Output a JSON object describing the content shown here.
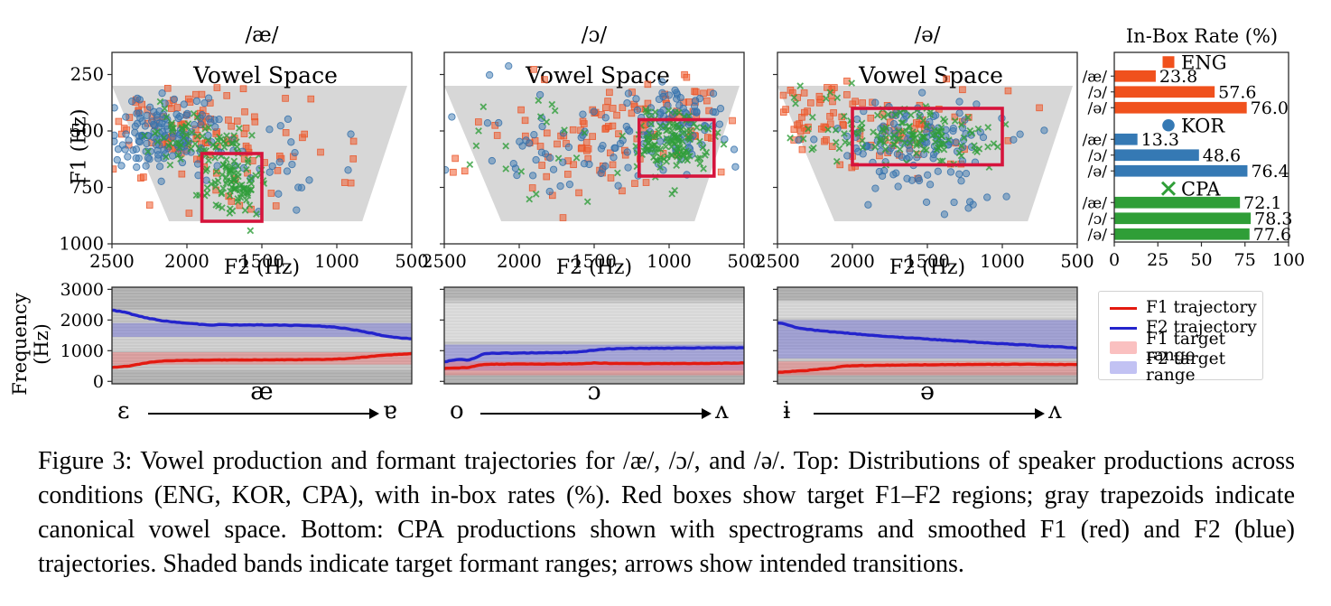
{
  "colors": {
    "eng": "#f0511d",
    "kor": "#3579b4",
    "cpa": "#2f9e37",
    "eng_scatter_fill": "rgba(240,92,48,0.55)",
    "eng_scatter_edge": "rgba(233,84,40,0.9)",
    "kor_scatter_fill": "rgba(62,122,177,0.5)",
    "kor_scatter_edge": "rgba(52,112,170,0.85)",
    "cpa_scatter_stroke": "rgba(47,158,57,0.8)",
    "target_box": "#d6143c",
    "vowel_space": "#d7d7d7",
    "f1_line": "#e31a10",
    "f2_line": "#2424cc",
    "f1_band": "rgba(244,115,115,0.45)",
    "f2_band": "rgba(110,110,226,0.42)",
    "spectrogram_base": "#bdbdbd",
    "frame": "#2b2b2b"
  },
  "chart_data": {
    "vowel_scatter": {
      "type": "scatter",
      "x_axis": {
        "label": "F2 (Hz)",
        "ticks": [
          2500,
          2000,
          1500,
          1000,
          500
        ],
        "range": [
          2500,
          500
        ],
        "reversed": true
      },
      "y_axis": {
        "label": "F1 (Hz)",
        "ticks": [
          250,
          500,
          750,
          1000
        ],
        "range": [
          152,
          1000
        ],
        "reversed": true
      },
      "annotation": "Vowel Space",
      "vowel_space_polygon_f2_f1": [
        [
          2500,
          300
        ],
        [
          530,
          300
        ],
        [
          830,
          900
        ],
        [
          2120,
          900
        ]
      ],
      "series": [
        {
          "name": "ENG",
          "marker": "square"
        },
        {
          "name": "KOR",
          "marker": "circle"
        },
        {
          "name": "CPA",
          "marker": "x"
        }
      ],
      "panels": [
        {
          "title": "/æ/",
          "target_box": {
            "f2": [
              1900,
              1500
            ],
            "f1": [
              600,
              900
            ]
          },
          "clusters": [
            {
              "s": "ENG",
              "n": 95,
              "x": 2060,
              "y": 500,
              "sx": 270,
              "sy": 95
            },
            {
              "s": "ENG",
              "n": 22,
              "x": 1650,
              "y": 720,
              "sx": 260,
              "sy": 120
            },
            {
              "s": "ENG",
              "n": 10,
              "x": 1280,
              "y": 560,
              "sx": 140,
              "sy": 90
            },
            {
              "s": "KOR",
              "n": 135,
              "x": 2160,
              "y": 505,
              "sx": 220,
              "sy": 75
            },
            {
              "s": "KOR",
              "n": 20,
              "x": 1500,
              "y": 620,
              "sx": 260,
              "sy": 120
            },
            {
              "s": "KOR",
              "n": 7,
              "x": 1260,
              "y": 760,
              "sx": 90,
              "sy": 70
            },
            {
              "s": "CPA",
              "n": 65,
              "x": 1950,
              "y": 535,
              "sx": 170,
              "sy": 55
            },
            {
              "s": "CPA",
              "n": 95,
              "x": 1700,
              "y": 735,
              "sx": 105,
              "sy": 80
            }
          ]
        },
        {
          "title": "/ɔ/",
          "target_box": {
            "f2": [
              1200,
              700
            ],
            "f1": [
              450,
              700
            ]
          },
          "clusters": [
            {
              "s": "ENG",
              "n": 95,
              "x": 1450,
              "y": 520,
              "sx": 380,
              "sy": 120
            },
            {
              "s": "ENG",
              "n": 18,
              "x": 900,
              "y": 360,
              "sx": 160,
              "sy": 60
            },
            {
              "s": "KOR",
              "n": 85,
              "x": 950,
              "y": 470,
              "sx": 150,
              "sy": 80
            },
            {
              "s": "KOR",
              "n": 55,
              "x": 1650,
              "y": 560,
              "sx": 380,
              "sy": 130
            },
            {
              "s": "CPA",
              "n": 125,
              "x": 1000,
              "y": 545,
              "sx": 115,
              "sy": 70
            },
            {
              "s": "CPA",
              "n": 22,
              "x": 1800,
              "y": 600,
              "sx": 330,
              "sy": 140
            }
          ]
        },
        {
          "title": "/ə/",
          "target_box": {
            "f2": [
              2000,
              1000
            ],
            "f1": [
              400,
              650
            ]
          },
          "clusters": [
            {
              "s": "ENG",
              "n": 70,
              "x": 1750,
              "y": 495,
              "sx": 340,
              "sy": 105
            },
            {
              "s": "ENG",
              "n": 30,
              "x": 2260,
              "y": 395,
              "sx": 140,
              "sy": 85
            },
            {
              "s": "KOR",
              "n": 105,
              "x": 1560,
              "y": 530,
              "sx": 270,
              "sy": 85
            },
            {
              "s": "KOR",
              "n": 25,
              "x": 1500,
              "y": 750,
              "sx": 240,
              "sy": 85
            },
            {
              "s": "CPA",
              "n": 125,
              "x": 1560,
              "y": 520,
              "sx": 240,
              "sy": 65
            },
            {
              "s": "CPA",
              "n": 14,
              "x": 2200,
              "y": 460,
              "sx": 170,
              "sy": 95
            }
          ]
        }
      ]
    },
    "in_box_rate": {
      "type": "bar",
      "title": "In-Box Rate (%)",
      "orientation": "horizontal",
      "xlim": [
        0,
        100
      ],
      "x_ticks": [
        0,
        25,
        50,
        75,
        100
      ],
      "categories": [
        "/æ/",
        "/ɔ/",
        "/ə/"
      ],
      "series": [
        {
          "name": "ENG",
          "marker": "square",
          "values": [
            23.8,
            57.6,
            76.0
          ],
          "labels": [
            "23.8",
            "57.6",
            "76.0"
          ]
        },
        {
          "name": "KOR",
          "marker": "circle",
          "values": [
            13.3,
            48.6,
            76.4
          ],
          "labels": [
            "13.3",
            "48.6",
            "76.4"
          ]
        },
        {
          "name": "CPA",
          "marker": "x",
          "values": [
            72.1,
            78.3,
            77.6
          ],
          "labels": [
            "72.1",
            "78.3",
            "77.6"
          ]
        }
      ]
    },
    "formant_trajectories": {
      "type": "line",
      "y_axis": {
        "label": "Frequency (Hz)",
        "ticks": [
          0,
          1000,
          2000,
          3000
        ],
        "range": [
          0,
          3000
        ]
      },
      "panels": [
        {
          "vowel": "æ",
          "from": "ε",
          "to": "ɐ",
          "f1_target_range": [
            550,
            950
          ],
          "f2_target_range": [
            1450,
            1900
          ],
          "light_zones": [
            [
              1000,
              1450,
              0.18
            ]
          ],
          "dark_zones": [
            [
              2350,
              3070,
              0.1
            ],
            [
              -80,
              350,
              0.1
            ]
          ],
          "f2_trajectory": [
            [
              0,
              2320
            ],
            [
              0.04,
              2260
            ],
            [
              0.08,
              2150
            ],
            [
              0.12,
              2060
            ],
            [
              0.16,
              1990
            ],
            [
              0.2,
              1940
            ],
            [
              0.25,
              1900
            ],
            [
              0.3,
              1855
            ],
            [
              0.33,
              1830
            ],
            [
              0.36,
              1862
            ],
            [
              0.4,
              1840
            ],
            [
              0.45,
              1846
            ],
            [
              0.5,
              1840
            ],
            [
              0.55,
              1836
            ],
            [
              0.6,
              1830
            ],
            [
              0.65,
              1820
            ],
            [
              0.7,
              1800
            ],
            [
              0.75,
              1760
            ],
            [
              0.78,
              1720
            ],
            [
              0.82,
              1660
            ],
            [
              0.86,
              1580
            ],
            [
              0.9,
              1500
            ],
            [
              0.93,
              1450
            ],
            [
              0.96,
              1410
            ],
            [
              1,
              1390
            ]
          ],
          "f1_trajectory": [
            [
              0,
              455
            ],
            [
              0.05,
              490
            ],
            [
              0.09,
              560
            ],
            [
              0.13,
              630
            ],
            [
              0.17,
              665
            ],
            [
              0.22,
              680
            ],
            [
              0.3,
              690
            ],
            [
              0.4,
              700
            ],
            [
              0.5,
              700
            ],
            [
              0.6,
              705
            ],
            [
              0.7,
              715
            ],
            [
              0.78,
              740
            ],
            [
              0.84,
              790
            ],
            [
              0.9,
              845
            ],
            [
              0.95,
              880
            ],
            [
              1,
              905
            ]
          ]
        },
        {
          "vowel": "ɔ",
          "from": "o",
          "to": "ʌ",
          "f1_target_range": [
            200,
            650
          ],
          "f2_target_range": [
            350,
            1200
          ],
          "light_zones": [
            [
              1300,
              2550,
              0.38
            ],
            [
              300,
              1150,
              0.15
            ]
          ],
          "dark_zones": [
            [
              2700,
              3070,
              0.1
            ],
            [
              -80,
              250,
              0.12
            ]
          ],
          "f2_trajectory": [
            [
              0,
              640
            ],
            [
              0.03,
              690
            ],
            [
              0.05,
              710
            ],
            [
              0.08,
              700
            ],
            [
              0.1,
              760
            ],
            [
              0.13,
              900
            ],
            [
              0.16,
              915
            ],
            [
              0.22,
              920
            ],
            [
              0.3,
              930
            ],
            [
              0.38,
              940
            ],
            [
              0.45,
              960
            ],
            [
              0.5,
              1020
            ],
            [
              0.55,
              1060
            ],
            [
              0.62,
              1075
            ],
            [
              0.7,
              1080
            ],
            [
              0.8,
              1085
            ],
            [
              0.9,
              1090
            ],
            [
              1,
              1095
            ]
          ],
          "f1_trajectory": [
            [
              0,
              420
            ],
            [
              0.04,
              440
            ],
            [
              0.08,
              450
            ],
            [
              0.12,
              540
            ],
            [
              0.16,
              560
            ],
            [
              0.25,
              565
            ],
            [
              0.35,
              565
            ],
            [
              0.45,
              575
            ],
            [
              0.5,
              600
            ],
            [
              0.55,
              585
            ],
            [
              0.65,
              580
            ],
            [
              0.75,
              580
            ],
            [
              0.85,
              585
            ],
            [
              0.95,
              590
            ],
            [
              1,
              600
            ]
          ]
        },
        {
          "vowel": "ə",
          "from": "ɨ",
          "to": "ʌ",
          "f1_target_range": [
            200,
            650
          ],
          "f2_target_range": [
            750,
            2000
          ],
          "light_zones": [
            [
              2050,
              2600,
              0.3
            ],
            [
              850,
              1050,
              0.15
            ]
          ],
          "dark_zones": [
            [
              2650,
              3070,
              0.12
            ],
            [
              -80,
              300,
              0.12
            ]
          ],
          "f2_trajectory": [
            [
              0,
              1900
            ],
            [
              0.02,
              1890
            ],
            [
              0.03,
              1840
            ],
            [
              0.06,
              1760
            ],
            [
              0.1,
              1700
            ],
            [
              0.14,
              1650
            ],
            [
              0.18,
              1615
            ],
            [
              0.25,
              1555
            ],
            [
              0.32,
              1500
            ],
            [
              0.4,
              1445
            ],
            [
              0.48,
              1390
            ],
            [
              0.56,
              1340
            ],
            [
              0.64,
              1290
            ],
            [
              0.72,
              1245
            ],
            [
              0.8,
              1200
            ],
            [
              0.86,
              1170
            ],
            [
              0.9,
              1140
            ],
            [
              0.94,
              1130
            ],
            [
              0.97,
              1105
            ],
            [
              1,
              1090
            ]
          ],
          "f1_trajectory": [
            [
              0,
              295
            ],
            [
              0.06,
              330
            ],
            [
              0.12,
              375
            ],
            [
              0.18,
              430
            ],
            [
              0.22,
              500
            ],
            [
              0.28,
              515
            ],
            [
              0.36,
              525
            ],
            [
              0.45,
              535
            ],
            [
              0.55,
              545
            ],
            [
              0.65,
              550
            ],
            [
              0.75,
              555
            ],
            [
              0.82,
              560
            ],
            [
              0.88,
              550
            ],
            [
              0.93,
              545
            ],
            [
              1,
              550
            ]
          ]
        }
      ]
    }
  },
  "legend": {
    "items": [
      {
        "label": "F1 trajectory",
        "swatch": "line",
        "color_key": "f1_line"
      },
      {
        "label": "F2 trajectory",
        "swatch": "line",
        "color_key": "f2_line"
      },
      {
        "label": "F1 target range",
        "swatch": "patch",
        "color_key": "f1_band"
      },
      {
        "label": "F2 target range",
        "swatch": "patch",
        "color_key": "f2_band"
      }
    ]
  },
  "caption": {
    "text": "Figure 3: Vowel production and formant trajectories for /æ/, /ɔ/, and /ə/. Top: Distributions of speaker productions across conditions (ENG, KOR, CPA), with in-box rates (%). Red boxes show target F1–F2 regions; gray trapezoids indicate canonical vowel space. Bottom: CPA productions shown with spectrograms and smoothed F1 (red) and F2 (blue) trajectories. Shaded bands indicate target formant ranges; arrows show intended transitions."
  }
}
